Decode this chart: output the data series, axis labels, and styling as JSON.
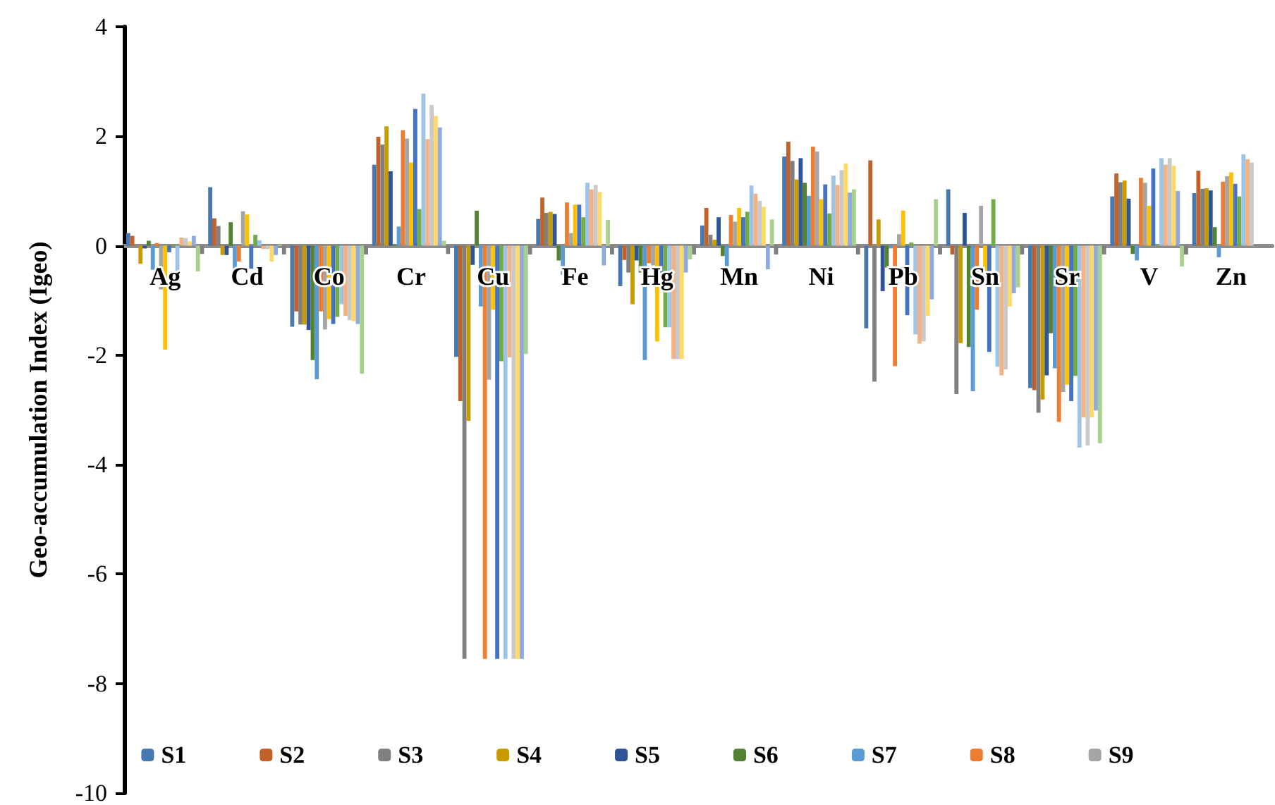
{
  "chart_data": {
    "type": "bar",
    "ylabel": "Geo-accumulation Index (Igeo)",
    "categories": [
      "Ag",
      "Cd",
      "Co",
      "Cr",
      "Cu",
      "Fe",
      "Hg",
      "Mn",
      "Ni",
      "Pb",
      "Sn",
      "Sr",
      "V",
      "Zn"
    ],
    "ylim": [
      -10,
      4
    ],
    "yticks": [
      -10,
      -8,
      -6,
      -4,
      -2,
      0,
      2,
      4
    ],
    "grid": false,
    "legend": "bottom",
    "series": [
      {
        "name": "S1",
        "color": "#4878b0",
        "values": [
          0.23,
          1.07,
          -1.48,
          1.48,
          -2.03,
          0.49,
          -0.74,
          0.37,
          1.63,
          -1.51,
          1.03,
          -2.6,
          0.9,
          0.96
        ]
      },
      {
        "name": "S2",
        "color": "#c0622a",
        "values": [
          0.18,
          0.5,
          -1.2,
          1.99,
          -2.84,
          0.88,
          -0.26,
          0.69,
          1.9,
          1.56,
          -0.16,
          -2.64,
          1.32,
          1.37
        ]
      },
      {
        "name": "S3",
        "color": "#808080",
        "values": [
          null,
          0.36,
          -1.44,
          1.85,
          -7.55,
          0.6,
          -0.49,
          0.2,
          1.55,
          -2.48,
          -2.71,
          -3.05,
          1.16,
          1.04
        ]
      },
      {
        "name": "S4",
        "color": "#c89b00",
        "values": [
          -0.33,
          -0.17,
          -1.44,
          2.18,
          -3.2,
          0.62,
          -1.07,
          0.11,
          1.21,
          0.48,
          -1.78,
          -2.81,
          1.19,
          1.05
        ]
      },
      {
        "name": "S5",
        "color": "#2f5597",
        "values": [
          -0.05,
          -0.17,
          -1.54,
          1.36,
          -0.35,
          0.58,
          -0.27,
          0.52,
          1.6,
          -0.83,
          0.6,
          -2.37,
          0.86,
          1.01
        ]
      },
      {
        "name": "S6",
        "color": "#548235",
        "values": [
          0.09,
          0.43,
          -2.09,
          0.02,
          0.64,
          -0.27,
          -0.49,
          -0.19,
          1.15,
          -0.4,
          -1.85,
          -1.6,
          -0.15,
          0.34
        ]
      },
      {
        "name": "S7",
        "color": "#5b9bd5",
        "values": [
          -0.44,
          -0.42,
          -2.44,
          0.35,
          -1.11,
          -0.53,
          -2.09,
          -0.47,
          0.91,
          -0.05,
          -2.66,
          -2.24,
          -0.27,
          -0.21
        ]
      },
      {
        "name": "S8",
        "color": "#ed7d31",
        "values": [
          0.05,
          -0.29,
          -1.2,
          2.11,
          -7.55,
          0.79,
          -0.32,
          0.56,
          1.81,
          -2.2,
          -1.17,
          -3.22,
          1.24,
          1.17
        ]
      },
      {
        "name": "S9",
        "color": "#a5a5a5",
        "values": [
          -0.8,
          0.63,
          -1.53,
          1.96,
          -2.45,
          0.23,
          -0.36,
          0.44,
          1.72,
          0.21,
          0.73,
          -2.67,
          1.15,
          1.27
        ]
      },
      {
        "color": "#ffc000",
        "values": [
          -1.9,
          0.57,
          -1.34,
          1.52,
          -1.17,
          0.75,
          -1.75,
          0.69,
          0.85,
          0.64,
          -0.49,
          -2.54,
          0.73,
          1.34
        ]
      },
      {
        "color": "#4472c4",
        "values": [
          -0.12,
          -0.42,
          -1.43,
          2.5,
          -7.55,
          0.75,
          -0.49,
          0.52,
          1.12,
          -1.27,
          -1.94,
          -2.84,
          1.41,
          1.13
        ]
      },
      {
        "color": "#70ad47",
        "values": [
          0.02,
          0.2,
          -1.3,
          0.67,
          -2.11,
          0.52,
          -1.49,
          0.62,
          0.59,
          0.06,
          0.85,
          -2.38,
          0.02,
          0.9
        ]
      },
      {
        "color": "#9dc3e6",
        "values": [
          -0.47,
          0.1,
          -1.07,
          2.78,
          -7.55,
          1.15,
          -1.49,
          1.1,
          1.28,
          -1.62,
          -2.21,
          -3.69,
          1.6,
          1.67
        ]
      },
      {
        "color": "#f4b183",
        "values": [
          0.15,
          -0.06,
          -1.28,
          1.95,
          -2.04,
          1.03,
          -2.07,
          0.95,
          1.11,
          -1.79,
          -2.37,
          -3.14,
          1.48,
          1.58
        ]
      },
      {
        "color": "#c9c9c9",
        "values": [
          0.14,
          -0.06,
          -1.36,
          2.57,
          -7.55,
          1.11,
          -2.07,
          0.82,
          1.38,
          -1.75,
          -2.26,
          -3.65,
          1.6,
          1.52
        ]
      },
      {
        "color": "#ffd966",
        "values": [
          0.08,
          -0.29,
          -1.38,
          2.37,
          -7.55,
          0.98,
          -2.07,
          0.71,
          1.5,
          -1.28,
          -1.11,
          -3.14,
          1.46,
          null
        ]
      },
      {
        "color": "#8faadc",
        "values": [
          0.18,
          -0.17,
          -1.43,
          2.16,
          -7.55,
          -0.36,
          -0.49,
          -0.43,
          0.97,
          -0.98,
          -0.87,
          -3.01,
          1.0,
          null
        ]
      },
      {
        "color": "#a9d18e",
        "values": [
          -0.47,
          0.02,
          -2.34,
          0.09,
          -1.98,
          0.47,
          -0.25,
          0.48,
          1.03,
          0.85,
          -0.76,
          -3.61,
          -0.38,
          null
        ]
      },
      {
        "color": "#7f7f7f",
        "values": [
          -0.15,
          -0.16,
          -0.16,
          -0.15,
          -0.16,
          -0.16,
          -0.16,
          -0.16,
          -0.16,
          -0.16,
          -0.16,
          -0.16,
          -0.16,
          null
        ]
      }
    ]
  }
}
